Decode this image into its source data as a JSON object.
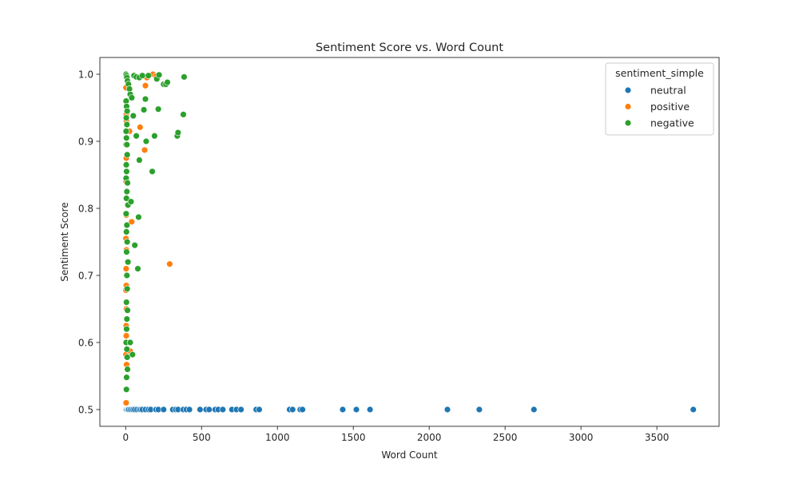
{
  "chart_data": {
    "type": "scatter",
    "title": "Sentiment Score vs. Word Count",
    "xlabel": "Word Count",
    "ylabel": "Sentiment Score",
    "xlim": [
      -170,
      3910
    ],
    "ylim": [
      0.475,
      1.025
    ],
    "xticks": [
      0,
      500,
      1000,
      1500,
      2000,
      2500,
      3000,
      3500
    ],
    "yticks": [
      0.5,
      0.6,
      0.7,
      0.8,
      0.9,
      1.0
    ],
    "xtick_labels": [
      "0",
      "500",
      "1000",
      "1500",
      "2000",
      "2500",
      "3000",
      "3500"
    ],
    "ytick_labels": [
      "0.5",
      "0.6",
      "0.7",
      "0.8",
      "0.9",
      "1.0"
    ],
    "grid": false,
    "legend": {
      "title": "sentiment_simple",
      "placement": "top-right",
      "entries": [
        "neutral",
        "positive",
        "negative"
      ]
    },
    "series": [
      {
        "name": "neutral",
        "color": "#1f77b4",
        "points": [
          [
            2,
            0.5
          ],
          [
            5,
            0.5
          ],
          [
            10,
            0.5
          ],
          [
            15,
            0.5
          ],
          [
            20,
            0.5
          ],
          [
            30,
            0.5
          ],
          [
            40,
            0.5
          ],
          [
            50,
            0.5
          ],
          [
            60,
            0.5
          ],
          [
            75,
            0.5
          ],
          [
            90,
            0.5
          ],
          [
            100,
            0.5
          ],
          [
            110,
            0.5
          ],
          [
            130,
            0.5
          ],
          [
            150,
            0.5
          ],
          [
            165,
            0.5
          ],
          [
            200,
            0.5
          ],
          [
            215,
            0.5
          ],
          [
            250,
            0.5
          ],
          [
            310,
            0.5
          ],
          [
            330,
            0.5
          ],
          [
            345,
            0.5
          ],
          [
            380,
            0.5
          ],
          [
            400,
            0.5
          ],
          [
            420,
            0.5
          ],
          [
            490,
            0.5
          ],
          [
            530,
            0.5
          ],
          [
            550,
            0.5
          ],
          [
            590,
            0.5
          ],
          [
            610,
            0.5
          ],
          [
            640,
            0.5
          ],
          [
            700,
            0.5
          ],
          [
            730,
            0.5
          ],
          [
            760,
            0.5
          ],
          [
            860,
            0.5
          ],
          [
            880,
            0.5
          ],
          [
            1080,
            0.5
          ],
          [
            1100,
            0.5
          ],
          [
            1150,
            0.5
          ],
          [
            1165,
            0.5
          ],
          [
            1430,
            0.5
          ],
          [
            1520,
            0.5
          ],
          [
            1610,
            0.5
          ],
          [
            2120,
            0.5
          ],
          [
            2330,
            0.5
          ],
          [
            2690,
            0.5
          ],
          [
            3740,
            0.5
          ]
        ]
      },
      {
        "name": "positive",
        "color": "#ff7f0e",
        "points": [
          [
            2,
            0.98
          ],
          [
            3,
            0.96
          ],
          [
            4,
            0.94
          ],
          [
            5,
            0.93
          ],
          [
            3,
            0.905
          ],
          [
            2,
            0.895
          ],
          [
            4,
            0.875
          ],
          [
            5,
            0.865
          ],
          [
            3,
            0.84
          ],
          [
            6,
            0.815
          ],
          [
            4,
            0.79
          ],
          [
            2,
            0.755
          ],
          [
            5,
            0.738
          ],
          [
            3,
            0.71
          ],
          [
            6,
            0.7
          ],
          [
            4,
            0.685
          ],
          [
            2,
            0.678
          ],
          [
            5,
            0.65
          ],
          [
            3,
            0.625
          ],
          [
            4,
            0.61
          ],
          [
            2,
            0.582
          ],
          [
            6,
            0.567
          ],
          [
            3,
            0.51
          ],
          [
            2,
            0.999
          ],
          [
            8,
            0.995
          ],
          [
            12,
            0.99
          ],
          [
            15,
            0.915
          ],
          [
            25,
            0.915
          ],
          [
            40,
            0.78
          ],
          [
            30,
            0.587
          ],
          [
            95,
            0.921
          ],
          [
            125,
            0.887
          ],
          [
            130,
            0.983
          ],
          [
            140,
            0.995
          ],
          [
            180,
            1.0
          ],
          [
            200,
            0.997
          ],
          [
            290,
            0.717
          ]
        ]
      },
      {
        "name": "negative",
        "color": "#2ca02c",
        "points": [
          [
            2,
            1.0
          ],
          [
            5,
            0.998
          ],
          [
            8,
            0.995
          ],
          [
            12,
            0.99
          ],
          [
            18,
            0.985
          ],
          [
            25,
            0.978
          ],
          [
            30,
            0.97
          ],
          [
            40,
            0.965
          ],
          [
            3,
            0.96
          ],
          [
            6,
            0.952
          ],
          [
            10,
            0.945
          ],
          [
            4,
            0.935
          ],
          [
            8,
            0.925
          ],
          [
            3,
            0.915
          ],
          [
            5,
            0.905
          ],
          [
            8,
            0.895
          ],
          [
            10,
            0.88
          ],
          [
            4,
            0.865
          ],
          [
            6,
            0.855
          ],
          [
            3,
            0.845
          ],
          [
            12,
            0.838
          ],
          [
            8,
            0.825
          ],
          [
            5,
            0.815
          ],
          [
            15,
            0.805
          ],
          [
            3,
            0.792
          ],
          [
            8,
            0.775
          ],
          [
            5,
            0.765
          ],
          [
            10,
            0.75
          ],
          [
            6,
            0.735
          ],
          [
            15,
            0.72
          ],
          [
            8,
            0.7
          ],
          [
            10,
            0.68
          ],
          [
            5,
            0.66
          ],
          [
            12,
            0.648
          ],
          [
            8,
            0.635
          ],
          [
            6,
            0.62
          ],
          [
            3,
            0.6
          ],
          [
            10,
            0.578
          ],
          [
            12,
            0.56
          ],
          [
            6,
            0.548
          ],
          [
            5,
            0.53
          ],
          [
            8,
            0.59
          ],
          [
            30,
            0.6
          ],
          [
            45,
            0.582
          ],
          [
            35,
            0.81
          ],
          [
            70,
            0.908
          ],
          [
            50,
            0.938
          ],
          [
            60,
            0.745
          ],
          [
            80,
            0.71
          ],
          [
            85,
            0.787
          ],
          [
            90,
            0.872
          ],
          [
            55,
            0.998
          ],
          [
            70,
            0.996
          ],
          [
            90,
            0.995
          ],
          [
            110,
            0.998
          ],
          [
            120,
            0.947
          ],
          [
            130,
            0.963
          ],
          [
            135,
            0.9
          ],
          [
            150,
            0.998
          ],
          [
            175,
            0.855
          ],
          [
            190,
            0.908
          ],
          [
            205,
            0.993
          ],
          [
            215,
            0.948
          ],
          [
            220,
            0.999
          ],
          [
            250,
            0.985
          ],
          [
            265,
            0.985
          ],
          [
            275,
            0.988
          ],
          [
            340,
            0.908
          ],
          [
            345,
            0.913
          ],
          [
            380,
            0.94
          ],
          [
            385,
            0.996
          ]
        ]
      }
    ]
  }
}
